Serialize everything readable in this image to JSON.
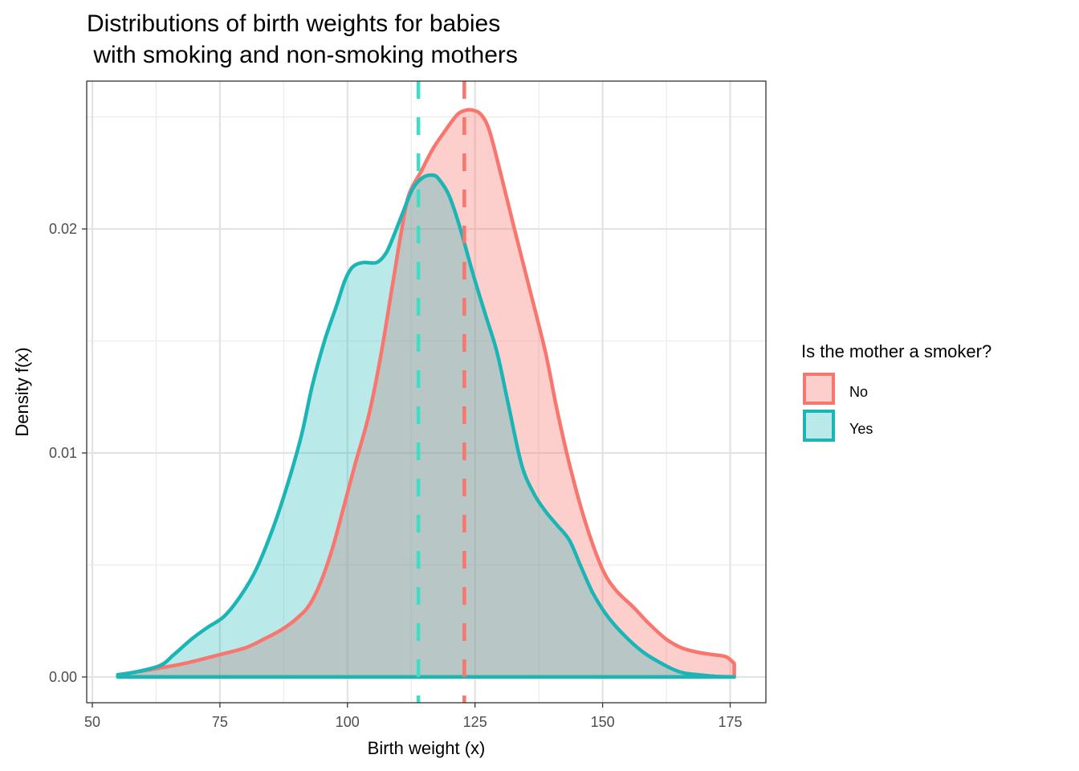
{
  "chart_data": {
    "type": "area",
    "title_lines": [
      "Distributions of birth weights for babies",
      " with smoking and non-smoking mothers"
    ],
    "xlabel": "Birth weight (x)",
    "ylabel": "Density f(x)",
    "xlim": [
      48.9,
      182
    ],
    "ylim": [
      -0.00115,
      0.0266
    ],
    "x_ticks": [
      50,
      75,
      100,
      125,
      150,
      175
    ],
    "x_tick_labels": [
      "50",
      "75",
      "100",
      "125",
      "150",
      "175"
    ],
    "y_ticks": [
      0.0,
      0.01,
      0.02
    ],
    "y_tick_labels": [
      "0.00",
      "0.01",
      "0.02"
    ],
    "grid": true,
    "legend": {
      "title": "Is the mother a smoker?",
      "placement": "right",
      "entries": [
        {
          "label": "No",
          "color": "#F8766D",
          "fill": "#F8766D"
        },
        {
          "label": "Yes",
          "color": "#1CB5B5",
          "fill": "#1CB5B5"
        }
      ]
    },
    "series": [
      {
        "name": "No",
        "color": "#F8766D",
        "fill_opacity": 0.35,
        "mean": 122.9,
        "mean_line_color": "#F8766D",
        "x": [
          55,
          58,
          63.2,
          68,
          75,
          80,
          83.7,
          87,
          90,
          92.5,
          94.7,
          97,
          99.4,
          101.5,
          104.2,
          106.5,
          108.9,
          110.5,
          112,
          114.5,
          116.8,
          119.2,
          121.5,
          123.2,
          124.6,
          126.2,
          127.8,
          130,
          132.5,
          135.5,
          138.8,
          141,
          143.5,
          146.5,
          149.8,
          152.5,
          156.1,
          159,
          162.4,
          165.5,
          168.7,
          171.5,
          174.2,
          175.8
        ],
        "y": [
          0.0001,
          0.0002,
          0.0004,
          0.0006,
          0.001,
          0.0013,
          0.0017,
          0.0021,
          0.0026,
          0.0032,
          0.0042,
          0.0057,
          0.0077,
          0.0095,
          0.0117,
          0.0143,
          0.0176,
          0.0198,
          0.0215,
          0.0226,
          0.0236,
          0.0244,
          0.0251,
          0.0253,
          0.0253,
          0.0251,
          0.0244,
          0.0225,
          0.0202,
          0.0175,
          0.0145,
          0.012,
          0.0095,
          0.007,
          0.0049,
          0.0039,
          0.0031,
          0.0024,
          0.0017,
          0.0013,
          0.0011,
          0.001,
          0.0009,
          0.0006
        ]
      },
      {
        "name": "Yes",
        "color": "#1CB5B5",
        "fill_opacity": 0.3,
        "mean": 113.9,
        "mean_line_color": "#3FDCC6",
        "x": [
          55,
          58,
          63.2,
          66,
          69.5,
          72.5,
          75.8,
          79,
          82.1,
          85.5,
          88.4,
          91,
          93.1,
          95.5,
          97.9,
          99.5,
          101,
          103,
          105.7,
          107.5,
          108.9,
          110.8,
          112.8,
          114.8,
          116.8,
          118,
          119.9,
          122,
          124.6,
          127,
          129.3,
          131.5,
          134.1,
          136.5,
          138.8,
          141,
          143.5,
          145.8,
          148.2,
          151,
          154.5,
          158,
          162.4,
          165.5,
          168.7,
          172,
          175.8
        ],
        "y": [
          0.0001,
          0.0002,
          0.0005,
          0.001,
          0.0017,
          0.0022,
          0.0027,
          0.0036,
          0.0048,
          0.0067,
          0.0087,
          0.0108,
          0.013,
          0.015,
          0.0166,
          0.0177,
          0.0183,
          0.0185,
          0.0185,
          0.0189,
          0.0196,
          0.0207,
          0.0218,
          0.0223,
          0.0224,
          0.0222,
          0.0215,
          0.0201,
          0.018,
          0.0162,
          0.0145,
          0.0122,
          0.0095,
          0.0082,
          0.0074,
          0.0068,
          0.0061,
          0.0049,
          0.0037,
          0.0027,
          0.0018,
          0.0011,
          0.0005,
          0.0002,
          0.0001,
          3e-05,
          0.0
        ]
      }
    ]
  }
}
